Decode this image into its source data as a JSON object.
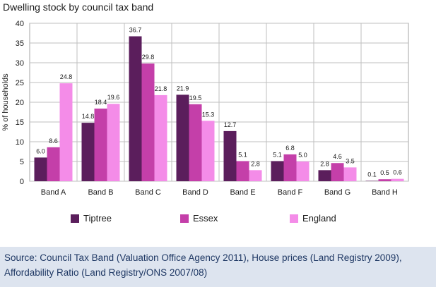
{
  "chart_data": {
    "type": "bar",
    "title": "Dwelling stock by council tax band",
    "xlabel": "",
    "ylabel": "% of households",
    "ylim": [
      0,
      40
    ],
    "yticks": [
      0,
      5,
      10,
      15,
      20,
      25,
      30,
      35,
      40
    ],
    "grid": true,
    "legend_position": "bottom",
    "categories": [
      "Band A",
      "Band B",
      "Band C",
      "Band D",
      "Band E",
      "Band F",
      "Band G",
      "Band H"
    ],
    "series": [
      {
        "name": "Tiptree",
        "color": "#5b1e5c",
        "values": [
          6.0,
          14.8,
          36.7,
          21.9,
          12.7,
          5.1,
          2.8,
          0.1
        ]
      },
      {
        "name": "Essex",
        "color": "#c43fa9",
        "values": [
          8.6,
          18.4,
          29.8,
          19.5,
          5.1,
          6.8,
          4.6,
          0.5
        ]
      },
      {
        "name": "England",
        "color": "#f48ce8",
        "values": [
          24.8,
          19.6,
          21.8,
          15.3,
          2.8,
          5.0,
          3.5,
          0.6
        ]
      }
    ]
  },
  "source": {
    "line1": "Source: Council Tax Band (Valuation Office Agency 2011), House prices (Land Registry 2009),",
    "line2": "Affordability Ratio (Land Registry/ONS 2007/08)"
  }
}
